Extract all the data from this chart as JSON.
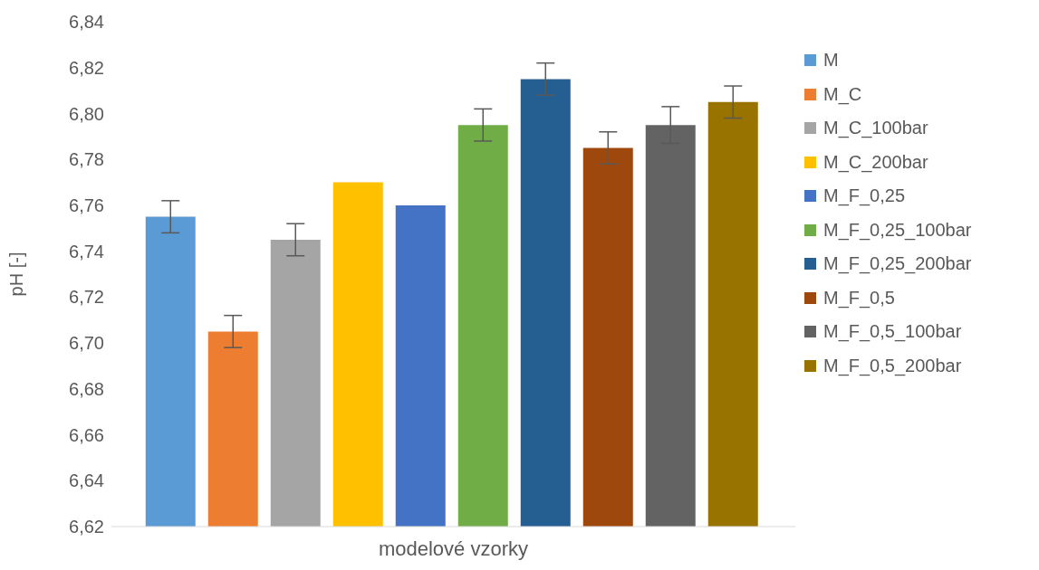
{
  "chart_data": {
    "type": "bar",
    "xlabel": "modelové vzorky",
    "ylabel": "pH [-]",
    "categories": [
      null
    ],
    "series": [
      {
        "name": "M",
        "color": "#5b9bd5",
        "values": [
          6.755
        ],
        "errors": [
          0.007
        ]
      },
      {
        "name": "M_C",
        "color": "#ed7d31",
        "values": [
          6.705
        ],
        "errors": [
          0.007
        ]
      },
      {
        "name": "M_C_100bar",
        "color": "#a5a5a5",
        "values": [
          6.745
        ],
        "errors": [
          0.007
        ]
      },
      {
        "name": "M_C_200bar",
        "color": "#ffc000",
        "values": [
          6.77
        ],
        "errors": [
          0
        ]
      },
      {
        "name": "M_F_0,25",
        "color": "#4472c4",
        "values": [
          6.76
        ],
        "errors": [
          0
        ]
      },
      {
        "name": "M_F_0,25_100bar",
        "color": "#70ad47",
        "values": [
          6.795
        ],
        "errors": [
          0.007
        ]
      },
      {
        "name": "M_F_0,25_200bar",
        "color": "#255e91",
        "values": [
          6.815
        ],
        "errors": [
          0.007
        ]
      },
      {
        "name": "M_F_0,5",
        "color": "#9e480e",
        "values": [
          6.785
        ],
        "errors": [
          0.007
        ]
      },
      {
        "name": "M_F_0,5_100bar",
        "color": "#636363",
        "values": [
          6.795
        ],
        "errors": [
          0.008
        ]
      },
      {
        "name": "M_F_0,5_200bar",
        "color": "#997300",
        "values": [
          6.805
        ],
        "errors": [
          0.007
        ]
      }
    ],
    "ylim": [
      6.62,
      6.84
    ],
    "yticks": [
      {
        "value": 6.62,
        "label": "6,62"
      },
      {
        "value": 6.64,
        "label": "6,64"
      },
      {
        "value": 6.66,
        "label": "6,66"
      },
      {
        "value": 6.68,
        "label": "6,68"
      },
      {
        "value": 6.7,
        "label": "6,70"
      },
      {
        "value": 6.72,
        "label": "6,72"
      },
      {
        "value": 6.74,
        "label": "6,74"
      },
      {
        "value": 6.76,
        "label": "6,76"
      },
      {
        "value": 6.78,
        "label": "6,78"
      },
      {
        "value": 6.8,
        "label": "6,80"
      },
      {
        "value": 6.82,
        "label": "6,82"
      },
      {
        "value": 6.84,
        "label": "6,84"
      }
    ],
    "grid": false,
    "legend": "right"
  }
}
